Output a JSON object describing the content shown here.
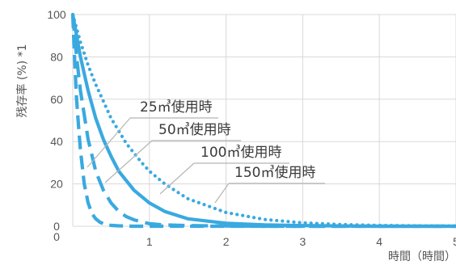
{
  "chart_data": {
    "type": "line",
    "ylabel": "残存率 (%) *1",
    "xlabel": "時間（時間）",
    "xlim": [
      0,
      5
    ],
    "ylim": [
      0,
      100
    ],
    "x_ticks": [
      "1",
      "2",
      "3",
      "4",
      "5"
    ],
    "x_zero": "0",
    "y_ticks": [
      "0",
      "20",
      "40",
      "60",
      "80",
      "100"
    ],
    "grid": true,
    "legend": "none",
    "series": [
      {
        "label": "25㎥使用時",
        "style": "dashed-long",
        "x": [
          0,
          0.02,
          0.05,
          0.08,
          0.1,
          0.15,
          0.2,
          0.25,
          0.3,
          0.35,
          0.4,
          0.5,
          0.6,
          0.8,
          1.0,
          1.5,
          2.0,
          5.0
        ],
        "y": [
          100,
          82,
          60,
          45,
          36,
          20,
          11,
          6,
          3.5,
          2,
          1.2,
          0.4,
          0.2,
          0,
          0,
          0,
          0,
          0
        ]
      },
      {
        "label": "50㎥使用時",
        "style": "dashed",
        "x": [
          0,
          0.05,
          0.1,
          0.2,
          0.3,
          0.4,
          0.5,
          0.6,
          0.7,
          0.8,
          1.0,
          1.2,
          1.5,
          2.0,
          2.5,
          5.0
        ],
        "y": [
          100,
          80,
          64,
          41,
          26,
          17,
          11,
          7,
          4.5,
          3,
          1.2,
          0.6,
          0.3,
          0.1,
          0,
          0
        ]
      },
      {
        "label": "100㎥使用時",
        "style": "solid",
        "x": [
          0,
          0.1,
          0.2,
          0.3,
          0.4,
          0.5,
          0.6,
          0.8,
          1.0,
          1.2,
          1.5,
          2.0,
          2.5,
          3.0,
          3.5,
          4.0,
          5.0
        ],
        "y": [
          100,
          80,
          64,
          51,
          41,
          33,
          26,
          17,
          11,
          7,
          3.5,
          1.4,
          0.6,
          0.3,
          0.1,
          0,
          0
        ]
      },
      {
        "label": "150㎥使用時",
        "style": "dotted",
        "x": [
          0,
          0.1,
          0.2,
          0.3,
          0.4,
          0.5,
          0.7,
          0.9,
          1.0,
          1.2,
          1.5,
          2.0,
          2.5,
          3.0,
          3.5,
          4.0,
          4.5,
          5.0
        ],
        "y": [
          100,
          87,
          76,
          67,
          59,
          51,
          39,
          30,
          26,
          20,
          13,
          6.5,
          3.2,
          1.6,
          0.8,
          0.4,
          0.2,
          0.1
        ]
      }
    ],
    "colors": {
      "line": "#3aa9e0",
      "grid": "#d8d8d8",
      "text": "#555555",
      "annotation_text": "#3a3a3a",
      "leader": "#b5b5b5"
    }
  }
}
